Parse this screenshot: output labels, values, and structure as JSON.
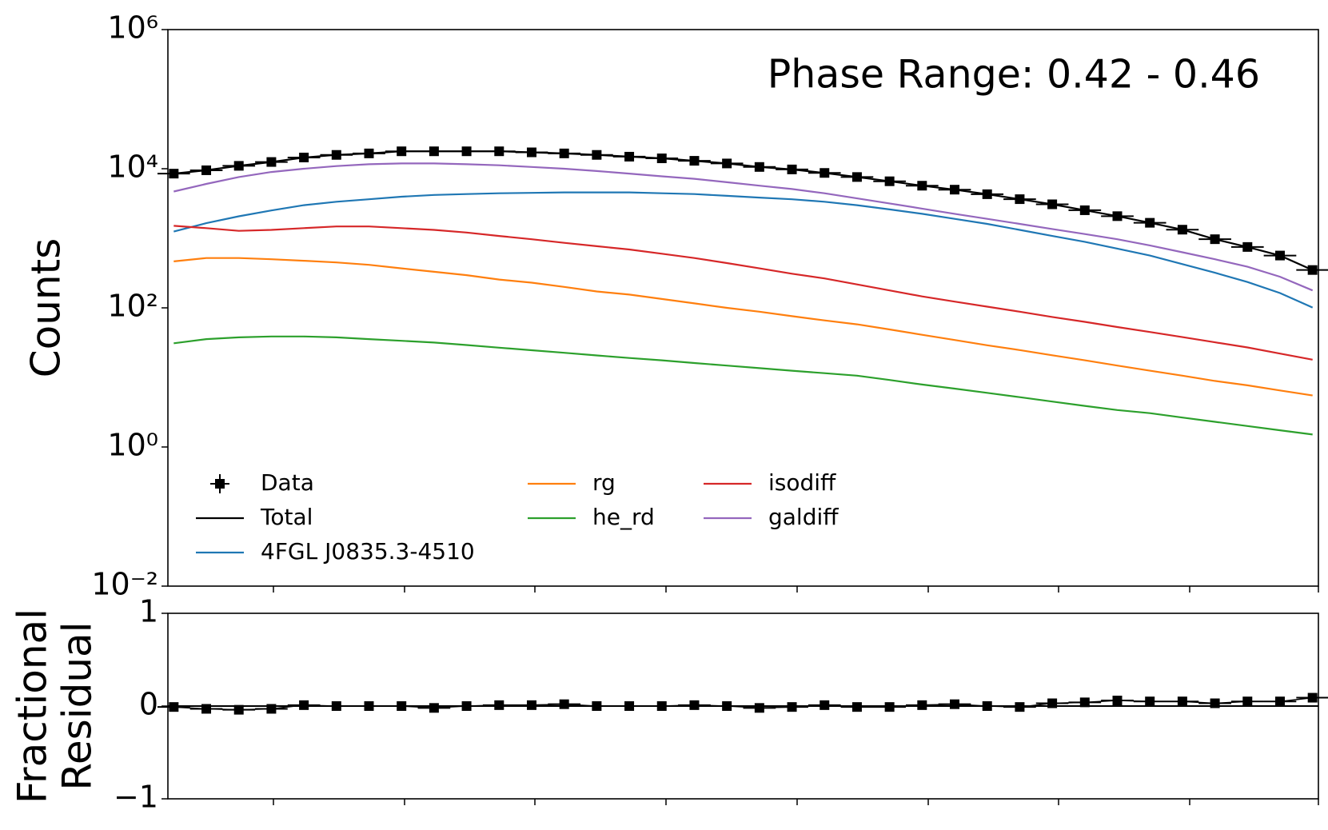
{
  "chart_data": [
    {
      "type": "line",
      "yscale": "log",
      "ylabel": "Counts",
      "annotation": "Phase Range: 0.42 - 0.46",
      "ylim": [
        0.01,
        1000000
      ],
      "yticks": [
        {
          "value": 1000000,
          "label": "10⁶"
        },
        {
          "value": 10000,
          "label": "10⁴"
        },
        {
          "value": 100,
          "label": "10²"
        },
        {
          "value": 1,
          "label": "10⁰"
        },
        {
          "value": 0.01,
          "label": "10⁻²"
        }
      ],
      "categories": [
        null,
        null,
        null,
        null,
        null,
        null,
        null,
        null,
        null,
        null,
        null,
        null,
        null,
        null,
        null,
        null,
        null,
        null,
        null,
        null,
        null,
        null,
        null,
        null,
        null,
        null,
        null,
        null,
        null,
        null,
        null,
        null,
        null,
        null,
        null,
        null
      ],
      "legend": "lower left",
      "legend_columns": 3,
      "data": {
        "name": "Data",
        "color": "#000000",
        "values": [
          8500,
          9500,
          11000,
          12500,
          14500,
          15800,
          16600,
          17800,
          17800,
          17800,
          17800,
          17200,
          16600,
          15800,
          14900,
          14100,
          13000,
          11900,
          10600,
          9770,
          8700,
          7600,
          6600,
          5700,
          5000,
          4300,
          3650,
          3080,
          2530,
          2080,
          1670,
          1330,
          970,
          750,
          565,
          350
        ]
      },
      "series": [
        {
          "name": "Total",
          "color": "#000000",
          "values": [
            8500,
            9500,
            11000,
            12500,
            14500,
            15800,
            16600,
            17800,
            17800,
            17800,
            17800,
            17200,
            16600,
            15800,
            14900,
            14100,
            13000,
            11900,
            10600,
            9770,
            8700,
            7600,
            6600,
            5700,
            5000,
            4300,
            3650,
            3080,
            2530,
            2080,
            1670,
            1330,
            970,
            750,
            565,
            350
          ]
        },
        {
          "name": "4FGL J0835.3-4510",
          "color": "#1f77b4",
          "values": [
            1250,
            1650,
            2070,
            2510,
            2990,
            3350,
            3640,
            3960,
            4200,
            4320,
            4440,
            4500,
            4570,
            4570,
            4570,
            4440,
            4320,
            4080,
            3850,
            3640,
            3350,
            2990,
            2600,
            2250,
            1900,
            1610,
            1320,
            1080,
            890,
            710,
            565,
            425,
            320,
            235,
            163,
            101
          ]
        },
        {
          "name": "rg",
          "color": "#ff7f0e",
          "values": [
            465,
            520,
            520,
            500,
            475,
            450,
            415,
            370,
            330,
            295,
            255,
            230,
            200,
            172,
            155,
            134,
            116,
            100,
            88,
            76,
            66,
            58,
            49,
            41,
            34.5,
            29,
            24.7,
            20.8,
            17.6,
            14.8,
            12.5,
            10.6,
            8.9,
            7.7,
            6.5,
            5.5
          ]
        },
        {
          "name": "he_rd",
          "color": "#2ca02c",
          "values": [
            31,
            35.5,
            37.7,
            38.8,
            38.8,
            37.7,
            35.5,
            33.6,
            31.7,
            29.2,
            26.8,
            24.6,
            22.6,
            20.7,
            19,
            17.6,
            16.1,
            14.8,
            13.6,
            12.5,
            11.5,
            10.6,
            9.2,
            7.9,
            6.9,
            6,
            5.2,
            4.5,
            3.9,
            3.4,
            3.06,
            2.65,
            2.3,
            2,
            1.74,
            1.51
          ]
        },
        {
          "name": "isodiff",
          "color": "#d62728",
          "values": [
            1510,
            1400,
            1280,
            1320,
            1400,
            1480,
            1480,
            1400,
            1320,
            1210,
            1080,
            970,
            860,
            770,
            690,
            600,
            520,
            440,
            370,
            310,
            265,
            217,
            178,
            146,
            123,
            104,
            88,
            74,
            63,
            53,
            45,
            38,
            32,
            27,
            22,
            18
          ]
        },
        {
          "name": "galdiff",
          "color": "#9467bd",
          "values": [
            4700,
            6050,
            7590,
            8980,
            10000,
            10900,
            11600,
            11900,
            11900,
            11600,
            11200,
            10600,
            10000,
            9250,
            8500,
            7780,
            7160,
            6400,
            5710,
            5100,
            4440,
            3750,
            3170,
            2670,
            2250,
            1900,
            1610,
            1360,
            1150,
            970,
            790,
            630,
            500,
            390,
            280,
            178
          ]
        }
      ]
    },
    {
      "type": "line",
      "yscale": "linear",
      "ylabel": [
        "Fractional",
        "Residual"
      ],
      "ylim": [
        -1,
        1
      ],
      "yticks": [
        {
          "value": -1,
          "label": "−1"
        },
        0,
        1
      ],
      "reference_line": 0,
      "color": "#000000",
      "categories": [
        null,
        null,
        null,
        null,
        null,
        null,
        null,
        null,
        null,
        null,
        null,
        null,
        null,
        null,
        null,
        null,
        null,
        null,
        null,
        null,
        null,
        null,
        null,
        null,
        null,
        null,
        null,
        null,
        null,
        null,
        null,
        null,
        null,
        null,
        null,
        null
      ],
      "values": [
        -0.01,
        -0.03,
        -0.04,
        -0.03,
        0.01,
        0,
        0,
        0,
        -0.02,
        0,
        0.01,
        0.01,
        0.02,
        0,
        0,
        0,
        0.01,
        0,
        -0.02,
        -0.01,
        0.01,
        -0.01,
        -0.01,
        0.01,
        0.02,
        0,
        -0.01,
        0.03,
        0.04,
        0.06,
        0.05,
        0.05,
        0.03,
        0.05,
        0.05,
        0.09
      ]
    }
  ]
}
